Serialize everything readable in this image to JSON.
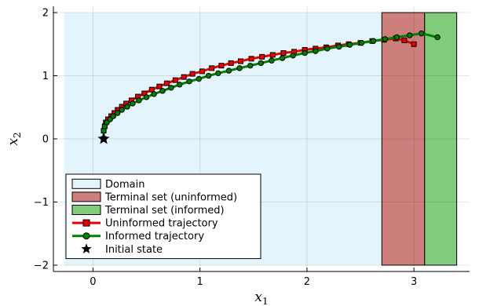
{
  "chart_data": {
    "type": "line",
    "xlabel": "x",
    "xlabel_sub": "1",
    "ylabel": "x",
    "ylabel_sub": "2",
    "xlim": [
      -0.37,
      3.52
    ],
    "ylim": [
      -2.1,
      2.1
    ],
    "xticks": [
      0,
      1,
      2,
      3
    ],
    "yticks": [
      -2,
      -1,
      0,
      1,
      2
    ],
    "grid": true,
    "legend_position": "bottom-left",
    "regions": [
      {
        "name": "Domain",
        "x": [
          -0.27,
          3.4
        ],
        "y": [
          -2,
          2
        ],
        "color": "#e4f4fc"
      },
      {
        "name": "Terminal set (uninformed)",
        "x": [
          2.7,
          3.1
        ],
        "y": [
          -2,
          2
        ],
        "color": "#cd7f7c"
      },
      {
        "name": "Terminal set (informed)",
        "x": [
          3.1,
          3.4
        ],
        "y": [
          -2,
          2
        ],
        "color": "#80cc7b"
      }
    ],
    "series": [
      {
        "name": "Uninformed trajectory",
        "color": "#ee0000",
        "marker": "square",
        "x": [
          0.1,
          0.1,
          0.11,
          0.12,
          0.14,
          0.17,
          0.2,
          0.23,
          0.27,
          0.31,
          0.36,
          0.42,
          0.48,
          0.55,
          0.62,
          0.69,
          0.77,
          0.85,
          0.93,
          1.02,
          1.11,
          1.2,
          1.29,
          1.38,
          1.48,
          1.58,
          1.68,
          1.78,
          1.88,
          1.98,
          2.08,
          2.18,
          2.29,
          2.39,
          2.5,
          2.61,
          2.72,
          2.83,
          2.91,
          3.0
        ],
        "y": [
          0.0,
          0.13,
          0.2,
          0.26,
          0.31,
          0.36,
          0.41,
          0.46,
          0.51,
          0.56,
          0.61,
          0.67,
          0.72,
          0.78,
          0.83,
          0.88,
          0.93,
          0.98,
          1.03,
          1.07,
          1.12,
          1.16,
          1.2,
          1.23,
          1.27,
          1.3,
          1.33,
          1.36,
          1.38,
          1.41,
          1.43,
          1.45,
          1.48,
          1.5,
          1.52,
          1.55,
          1.57,
          1.59,
          1.56,
          1.5
        ]
      },
      {
        "name": "Informed trajectory",
        "color": "#008000",
        "marker": "circle",
        "x": [
          0.1,
          0.1,
          0.11,
          0.13,
          0.16,
          0.19,
          0.23,
          0.27,
          0.32,
          0.37,
          0.43,
          0.5,
          0.57,
          0.65,
          0.73,
          0.81,
          0.9,
          0.99,
          1.08,
          1.17,
          1.27,
          1.37,
          1.47,
          1.57,
          1.67,
          1.77,
          1.87,
          1.98,
          2.08,
          2.19,
          2.3,
          2.4,
          2.51,
          2.62,
          2.73,
          2.84,
          2.96,
          3.07,
          3.22
        ],
        "y": [
          0.0,
          0.13,
          0.2,
          0.26,
          0.31,
          0.36,
          0.41,
          0.46,
          0.51,
          0.56,
          0.61,
          0.66,
          0.71,
          0.76,
          0.81,
          0.86,
          0.91,
          0.95,
          1.0,
          1.04,
          1.08,
          1.12,
          1.16,
          1.2,
          1.24,
          1.28,
          1.32,
          1.36,
          1.39,
          1.43,
          1.46,
          1.49,
          1.52,
          1.55,
          1.58,
          1.61,
          1.64,
          1.67,
          1.61
        ]
      }
    ],
    "initial_state": {
      "name": "Initial state",
      "x": 0.1,
      "y": 0.0,
      "color": "#000000"
    },
    "legend": [
      {
        "label": "Domain",
        "kind": "patch",
        "color": "#e4f4fc"
      },
      {
        "label": "Terminal set (uninformed)",
        "kind": "patch",
        "color": "#cd7f7c"
      },
      {
        "label": "Terminal set (informed)",
        "kind": "patch",
        "color": "#80cc7b"
      },
      {
        "label": "Uninformed trajectory",
        "kind": "line-square",
        "color": "#ee0000"
      },
      {
        "label": "Informed trajectory",
        "kind": "line-circle",
        "color": "#008000"
      },
      {
        "label": "Initial state",
        "kind": "star",
        "color": "#000000"
      }
    ]
  }
}
